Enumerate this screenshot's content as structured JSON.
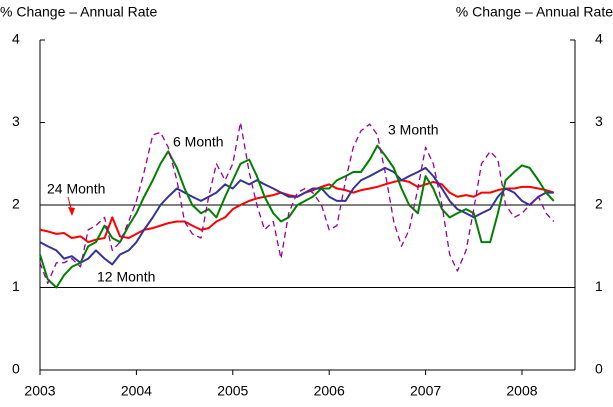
{
  "chart_data": {
    "type": "line",
    "y_label": "% Change – Annual Rate",
    "y2_label": "% Change – Annual Rate",
    "x": [
      2003.0,
      2003.08,
      2003.17,
      2003.25,
      2003.33,
      2003.42,
      2003.5,
      2003.58,
      2003.67,
      2003.75,
      2003.83,
      2003.92,
      2004.0,
      2004.08,
      2004.17,
      2004.25,
      2004.33,
      2004.42,
      2004.5,
      2004.58,
      2004.67,
      2004.75,
      2004.83,
      2004.92,
      2005.0,
      2005.08,
      2005.17,
      2005.25,
      2005.33,
      2005.42,
      2005.5,
      2005.58,
      2005.67,
      2005.75,
      2005.83,
      2005.92,
      2006.0,
      2006.08,
      2006.17,
      2006.25,
      2006.33,
      2006.42,
      2006.5,
      2006.58,
      2006.67,
      2006.75,
      2006.83,
      2006.92,
      2007.0,
      2007.08,
      2007.17,
      2007.25,
      2007.33,
      2007.42,
      2007.5,
      2007.58,
      2007.67,
      2007.75,
      2007.83,
      2007.92,
      2008.0,
      2008.08,
      2008.17,
      2008.25,
      2008.33
    ],
    "series": [
      {
        "name": "24 Month",
        "color": "#ff0000",
        "dash": false,
        "values": [
          1.7,
          1.68,
          1.65,
          1.66,
          1.6,
          1.62,
          1.55,
          1.58,
          1.6,
          1.85,
          1.62,
          1.6,
          1.65,
          1.7,
          1.72,
          1.75,
          1.78,
          1.8,
          1.8,
          1.75,
          1.7,
          1.72,
          1.8,
          1.85,
          1.95,
          2.0,
          2.05,
          2.08,
          2.1,
          2.12,
          2.15,
          2.12,
          2.1,
          2.15,
          2.18,
          2.22,
          2.25,
          2.2,
          2.18,
          2.15,
          2.18,
          2.2,
          2.22,
          2.25,
          2.28,
          2.3,
          2.28,
          2.22,
          2.25,
          2.28,
          2.25,
          2.15,
          2.1,
          2.12,
          2.1,
          2.15,
          2.15,
          2.18,
          2.2,
          2.2,
          2.22,
          2.22,
          2.2,
          2.18,
          2.15
        ]
      },
      {
        "name": "12 Month",
        "color": "#333399",
        "dash": false,
        "values": [
          1.55,
          1.5,
          1.45,
          1.35,
          1.38,
          1.3,
          1.35,
          1.45,
          1.35,
          1.28,
          1.4,
          1.45,
          1.55,
          1.7,
          1.85,
          2.0,
          2.1,
          2.2,
          2.15,
          2.1,
          2.05,
          2.1,
          2.15,
          2.25,
          2.2,
          2.3,
          2.25,
          2.3,
          2.25,
          2.2,
          2.15,
          2.1,
          2.1,
          2.15,
          2.2,
          2.2,
          2.1,
          2.05,
          2.05,
          2.2,
          2.3,
          2.35,
          2.4,
          2.45,
          2.4,
          2.3,
          2.35,
          2.4,
          2.45,
          2.35,
          2.2,
          2.05,
          1.95,
          1.9,
          1.85,
          1.9,
          1.95,
          2.1,
          2.2,
          2.15,
          2.05,
          2.0,
          2.1,
          2.15,
          2.15
        ]
      },
      {
        "name": "6 Month",
        "color": "#008000",
        "dash": false,
        "values": [
          1.4,
          1.1,
          1.0,
          1.15,
          1.25,
          1.3,
          1.5,
          1.55,
          1.75,
          1.6,
          1.55,
          1.75,
          1.9,
          2.1,
          2.3,
          2.5,
          2.65,
          2.45,
          2.2,
          2.0,
          1.9,
          1.95,
          1.85,
          2.1,
          2.3,
          2.5,
          2.55,
          2.35,
          2.1,
          1.9,
          1.8,
          1.85,
          2.0,
          2.05,
          2.1,
          2.2,
          2.2,
          2.3,
          2.35,
          2.4,
          2.4,
          2.55,
          2.72,
          2.6,
          2.45,
          2.2,
          2.0,
          1.9,
          2.35,
          2.2,
          1.95,
          1.85,
          1.9,
          1.95,
          1.9,
          1.55,
          1.55,
          1.9,
          2.3,
          2.4,
          2.48,
          2.45,
          2.3,
          2.15,
          2.05
        ]
      },
      {
        "name": "3 Month",
        "color": "#990099",
        "dash": true,
        "values": [
          1.3,
          1.05,
          1.3,
          1.3,
          1.35,
          1.25,
          1.7,
          1.75,
          1.85,
          1.45,
          1.55,
          1.8,
          2.05,
          2.4,
          2.85,
          2.88,
          2.7,
          2.3,
          1.8,
          1.65,
          1.6,
          2.1,
          2.5,
          2.3,
          2.5,
          3.0,
          2.4,
          2.0,
          1.7,
          1.8,
          1.35,
          1.9,
          2.15,
          2.2,
          2.15,
          2.0,
          1.7,
          1.75,
          2.3,
          2.7,
          2.9,
          2.98,
          2.85,
          2.4,
          1.8,
          1.5,
          1.7,
          2.2,
          2.7,
          2.5,
          2.0,
          1.4,
          1.2,
          1.45,
          1.95,
          2.5,
          2.65,
          2.55,
          2.0,
          1.85,
          1.9,
          2.0,
          2.1,
          1.9,
          1.8
        ]
      }
    ],
    "xlim": [
      2003,
      2008.55
    ],
    "xticks": [
      2003,
      2004,
      2005,
      2006,
      2007,
      2008
    ],
    "ylim": [
      0,
      4
    ],
    "yticks": [
      0,
      1,
      2,
      3,
      4
    ],
    "y2lim": [
      0,
      4
    ],
    "y2ticks": [
      0,
      1,
      2,
      3,
      4
    ],
    "hlines": [
      1,
      2
    ]
  }
}
